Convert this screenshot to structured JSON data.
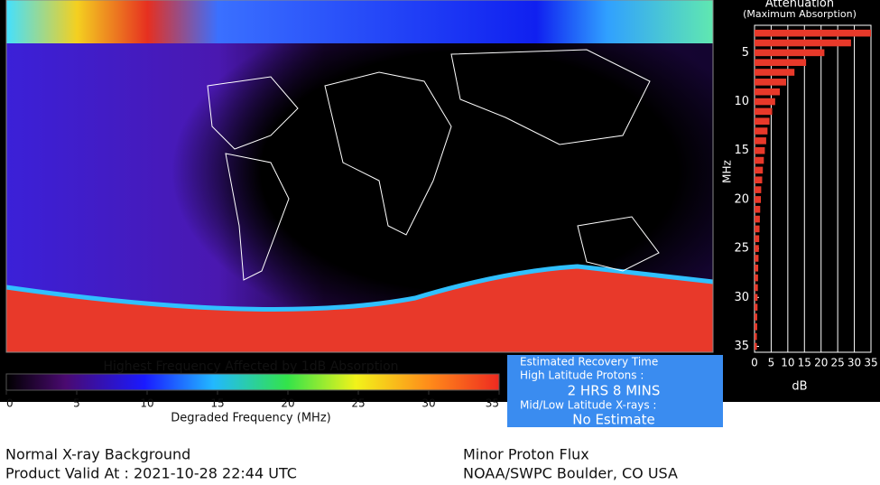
{
  "map": {
    "colorbar": {
      "title": "Highest Frequency Affected by 1dB Absorption",
      "label": "Degraded Frequency (MHz)",
      "lim": [
        0,
        35
      ],
      "ticks": [
        0,
        5,
        10,
        15,
        20,
        25,
        30,
        35
      ]
    }
  },
  "chart_data": {
    "type": "bar",
    "orientation": "horizontal",
    "title": "Attenuation",
    "subtitle": "(Maximum Absorption)",
    "x_label": "MHz",
    "y_label": "dB",
    "color": "#e8392a",
    "grid": true,
    "x": [
      3,
      4,
      5,
      6,
      7,
      8,
      9,
      10,
      11,
      12,
      13,
      14,
      15,
      16,
      17,
      18,
      19,
      20,
      21,
      22,
      23,
      24,
      25,
      26,
      27,
      28,
      29,
      30,
      31,
      32,
      33,
      34,
      35
    ],
    "values": [
      35,
      29,
      21,
      15.5,
      12,
      9.5,
      7.6,
      6.2,
      5.3,
      4.5,
      3.9,
      3.5,
      3.1,
      2.8,
      2.5,
      2.3,
      2.0,
      1.9,
      1.7,
      1.6,
      1.5,
      1.4,
      1.3,
      1.2,
      1.1,
      1.05,
      1.0,
      0.9,
      0.9,
      0.8,
      0.8,
      0.7,
      0.7
    ],
    "xlim": [
      2.2,
      35.6
    ],
    "xticks": [
      5,
      10,
      15,
      20,
      25,
      30,
      35
    ],
    "ylim": [
      0,
      35
    ],
    "yticks": [
      0,
      5,
      10,
      15,
      20,
      25,
      30,
      35
    ]
  },
  "recovery": {
    "title": "Estimated Recovery Time",
    "high_label": "High Latitude Protons :",
    "high_value": "2 HRS 8 MINS",
    "low_label": "Mid/Low Latitude X-rays :",
    "low_value": "No Estimate"
  },
  "footer": {
    "xray": "Normal X-ray Background",
    "valid": "Product Valid At : 2021-10-28 22:44 UTC",
    "proton": "Minor Proton Flux",
    "source": "NOAA/SWPC Boulder, CO USA"
  }
}
